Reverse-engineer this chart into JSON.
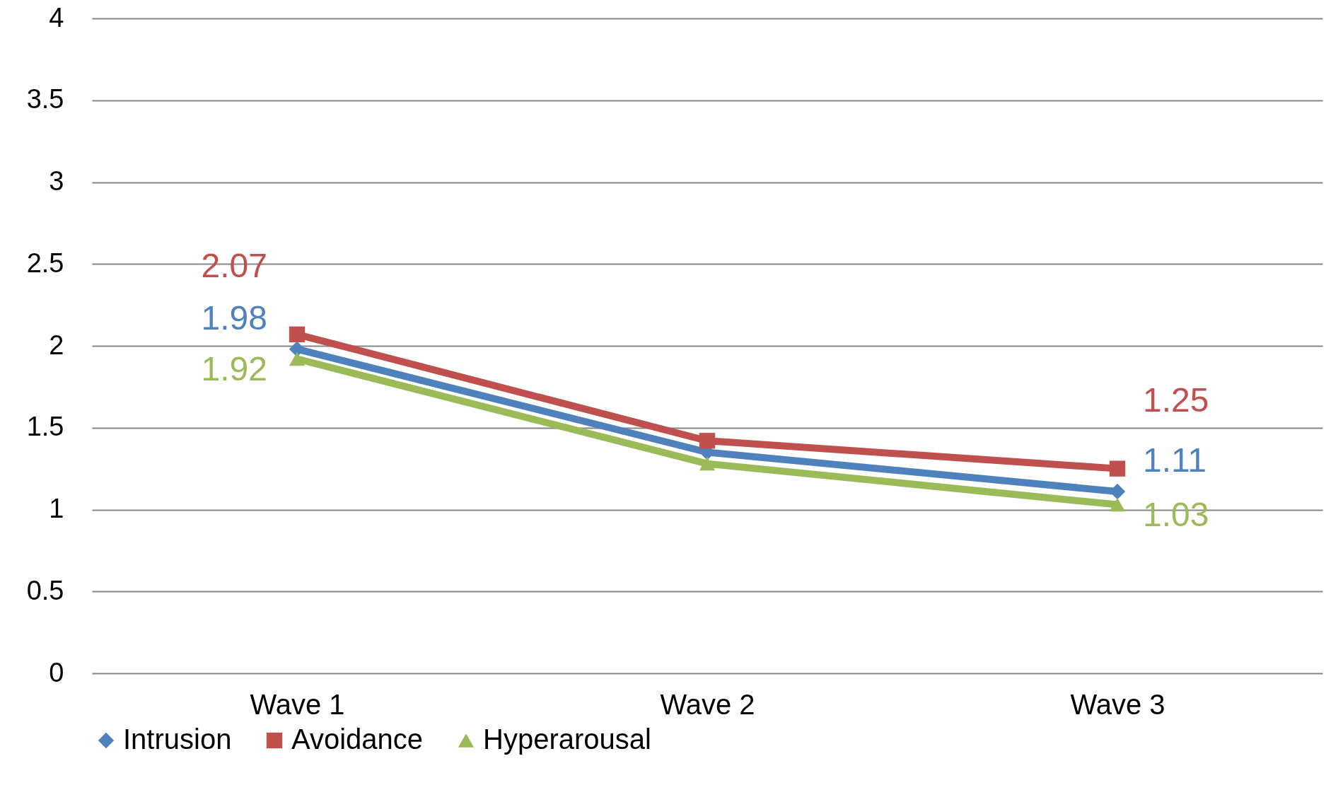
{
  "chart_data": {
    "type": "line",
    "categories": [
      "Wave 1",
      "Wave 2",
      "Wave 3"
    ],
    "series": [
      {
        "name": "Intrusion",
        "color": "#4f81bd",
        "marker": "diamond",
        "values": [
          1.98,
          1.35,
          1.11
        ],
        "value_labels": [
          "1.98",
          null,
          "1.11"
        ]
      },
      {
        "name": "Avoidance",
        "color": "#c0504d",
        "marker": "square",
        "values": [
          2.07,
          1.42,
          1.25
        ],
        "value_labels": [
          "2.07",
          null,
          "1.25"
        ]
      },
      {
        "name": "Hyperarousal",
        "color": "#9bbb59",
        "marker": "triangle",
        "values": [
          1.92,
          1.28,
          1.03
        ],
        "value_labels": [
          "1.92",
          null,
          "1.03"
        ]
      }
    ],
    "ylim": [
      0,
      4
    ],
    "yticks": [
      0,
      0.5,
      1,
      1.5,
      2,
      2.5,
      3,
      3.5,
      4
    ],
    "grid": "y",
    "legend": "bottom",
    "line_style": "solid"
  }
}
